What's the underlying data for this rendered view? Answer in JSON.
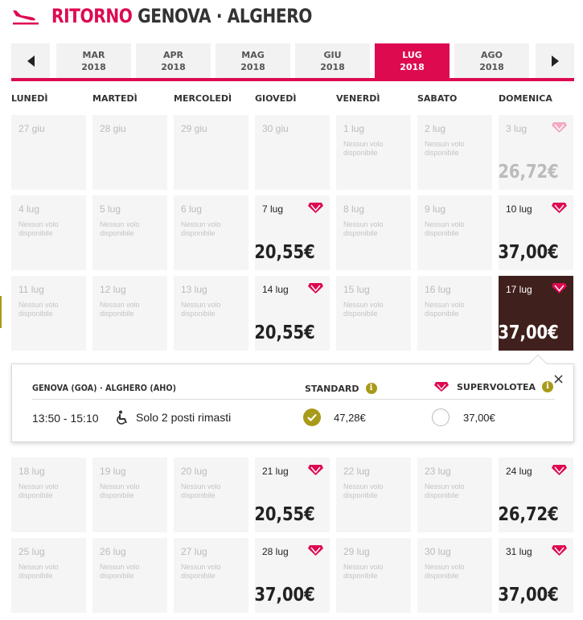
{
  "header": {
    "prefix": "RITORNO",
    "route": "GENOVA · ALGHERO",
    "icon": "plane-landing-icon"
  },
  "months": [
    {
      "month": "MAR",
      "year": "2018",
      "active": false
    },
    {
      "month": "APR",
      "year": "2018",
      "active": false
    },
    {
      "month": "MAG",
      "year": "2018",
      "active": false
    },
    {
      "month": "GIU",
      "year": "2018",
      "active": false
    },
    {
      "month": "LUG",
      "year": "2018",
      "active": true
    },
    {
      "month": "AGO",
      "year": "2018",
      "active": false
    }
  ],
  "weekdays": [
    "LUNEDÌ",
    "MARTEDÌ",
    "MERCOLEDÌ",
    "GIOVEDÌ",
    "VENERDÌ",
    "SABATO",
    "DOMENICA"
  ],
  "no_flight_text": "Nessun volo disponibile",
  "weeks": [
    [
      {
        "date": "27 giu",
        "type": "empty"
      },
      {
        "date": "28 giu",
        "type": "empty"
      },
      {
        "date": "29 giu",
        "type": "empty"
      },
      {
        "date": "30 giu",
        "type": "empty"
      },
      {
        "date": "1 lug",
        "type": "none"
      },
      {
        "date": "2 lug",
        "type": "none"
      },
      {
        "date": "3 lug",
        "type": "faded",
        "price": "26,72€"
      }
    ],
    [
      {
        "date": "4 lug",
        "type": "none"
      },
      {
        "date": "5 lug",
        "type": "none"
      },
      {
        "date": "6 lug",
        "type": "none"
      },
      {
        "date": "7 lug",
        "type": "avail",
        "price": "20,55€"
      },
      {
        "date": "8 lug",
        "type": "none"
      },
      {
        "date": "9 lug",
        "type": "none"
      },
      {
        "date": "10 lug",
        "type": "avail",
        "price": "37,00€"
      }
    ],
    [
      {
        "date": "11 lug",
        "type": "none"
      },
      {
        "date": "12 lug",
        "type": "none"
      },
      {
        "date": "13 lug",
        "type": "none"
      },
      {
        "date": "14 lug",
        "type": "avail",
        "price": "20,55€"
      },
      {
        "date": "15 lug",
        "type": "none"
      },
      {
        "date": "16 lug",
        "type": "none"
      },
      {
        "date": "17 lug",
        "type": "selected",
        "price": "37,00€"
      }
    ],
    [
      {
        "date": "18 lug",
        "type": "none"
      },
      {
        "date": "19 lug",
        "type": "none"
      },
      {
        "date": "20 lug",
        "type": "none"
      },
      {
        "date": "21 lug",
        "type": "avail",
        "price": "20,55€"
      },
      {
        "date": "22 lug",
        "type": "none"
      },
      {
        "date": "23 lug",
        "type": "none"
      },
      {
        "date": "24 lug",
        "type": "avail",
        "price": "26,72€"
      }
    ],
    [
      {
        "date": "25 lug",
        "type": "none"
      },
      {
        "date": "26 lug",
        "type": "none"
      },
      {
        "date": "27 lug",
        "type": "none"
      },
      {
        "date": "28 lug",
        "type": "avail",
        "price": "37,00€"
      },
      {
        "date": "29 lug",
        "type": "none"
      },
      {
        "date": "30 lug",
        "type": "none"
      },
      {
        "date": "31 lug",
        "type": "avail",
        "price": "37,00€"
      }
    ]
  ],
  "detail": {
    "route": "GENOVA (GOA) · ALGHERO (AHO)",
    "standard_label": "STANDARD",
    "supervolotea_label": "SUPERVOLOTEA",
    "time": "13:50 - 15:10",
    "seats": "Solo 2 posti rimasti",
    "standard_price": "47,28€",
    "supervolotea_price": "37,00€",
    "info_glyph": "i",
    "close_glyph": "×",
    "standard_selected": true
  },
  "colors": {
    "accent": "#dd0a50",
    "selected_cell": "#40201d",
    "olive": "#a89a1a"
  }
}
